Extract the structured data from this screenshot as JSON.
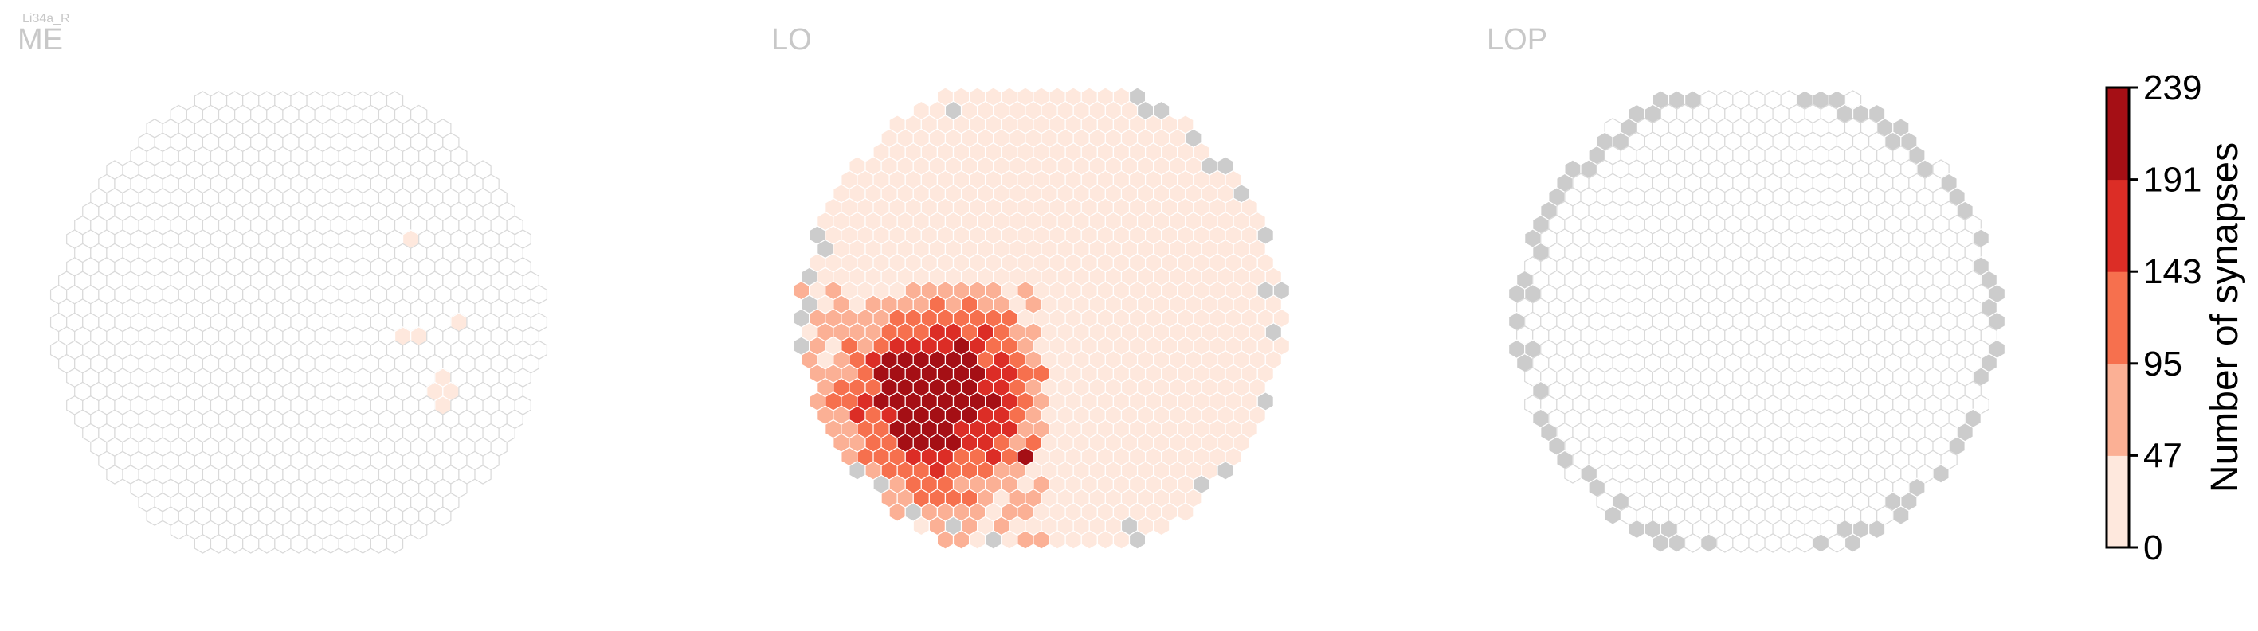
{
  "chart_data": {
    "type": "heatmap",
    "cell_type": "Li34a_R",
    "panels": [
      {
        "name": "ME",
        "hex_cells": 700,
        "highlighted": [
          {
            "q": 10,
            "r": -6,
            "count": 12
          },
          {
            "q": 6,
            "r": 1,
            "count": 10
          },
          {
            "q": 7,
            "r": 1,
            "count": 9
          },
          {
            "q": 10,
            "r": 0,
            "count": 8
          },
          {
            "q": 6,
            "r": 5,
            "count": 14
          },
          {
            "q": 7,
            "r": 4,
            "count": 11
          },
          {
            "q": 6,
            "r": 6,
            "count": 10
          },
          {
            "q": 7,
            "r": 5,
            "count": 9
          }
        ],
        "na_border_cells": 0
      },
      {
        "name": "LO",
        "hex_cells": 700,
        "value_profile": "highest in lower-left region (max 239), light pink elsewhere",
        "na_border_cells": 18
      },
      {
        "name": "LOP",
        "hex_cells": 700,
        "value_profile": "no synapses; grey cells on the outer border only",
        "na_border_cells": 64
      }
    ],
    "colorbar": {
      "label": "Number of synapses",
      "ticks": [
        "239",
        "191",
        "143",
        "95",
        "47",
        "0"
      ],
      "min": 0,
      "max": 239,
      "colors": [
        "#fee8dd",
        "#fbb095",
        "#f6704e",
        "#dc2d26",
        "#a50f15"
      ]
    },
    "colors": {
      "empty_cell_stroke": "#d9d9d9",
      "na_cell_fill": "#cccccc"
    }
  }
}
